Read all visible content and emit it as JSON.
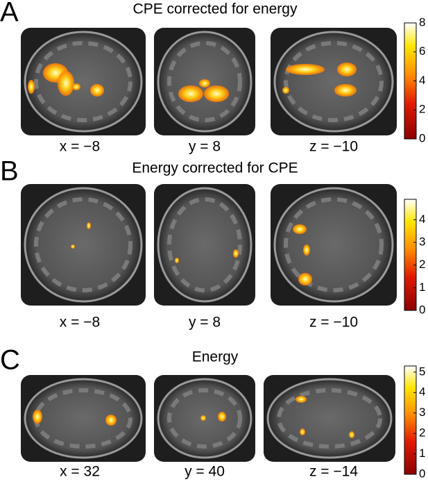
{
  "panels": [
    {
      "letter": "A",
      "title": "CPE corrected for energy",
      "slices": [
        "x = −8",
        "y = 8",
        "z = −10"
      ],
      "colorbar": {
        "lim": [
          0,
          8
        ],
        "ticks": [
          0,
          2,
          4,
          6,
          8
        ]
      }
    },
    {
      "letter": "B",
      "title": "Energy corrected for CPE",
      "slices": [
        "x = −8",
        "y = 8",
        "z = −10"
      ],
      "colorbar": {
        "lim": [
          0,
          4.9
        ],
        "ticks": [
          0,
          1,
          2,
          3,
          4
        ]
      }
    },
    {
      "letter": "C",
      "title": "Energy",
      "slices": [
        "x = 32",
        "y = 40",
        "z = −14"
      ],
      "colorbar": {
        "lim": [
          0,
          5.3
        ],
        "ticks": [
          0,
          1,
          2,
          3,
          4,
          5
        ]
      }
    }
  ]
}
